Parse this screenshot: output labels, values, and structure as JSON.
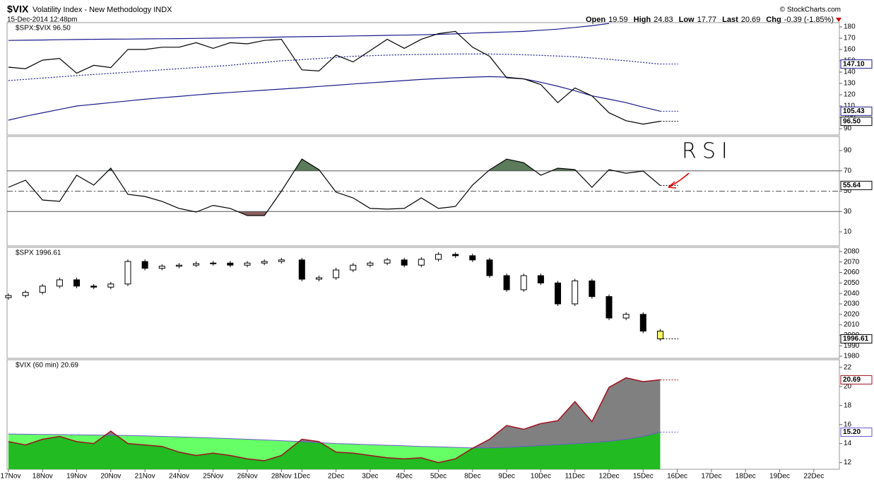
{
  "header": {
    "symbol": "$VIX",
    "description": "Volatility Index - New Methodology INDX",
    "timestamp": "15-Dec-2014 12:48pm",
    "copyright": "© StockCharts.com",
    "quote": [
      {
        "label": "Open",
        "value": "19.59"
      },
      {
        "label": "High",
        "value": "24.83"
      },
      {
        "label": "Low",
        "value": "17.77"
      },
      {
        "label": "Last",
        "value": "20.69"
      },
      {
        "label": "Chg",
        "value": "-0.39 (-1.85%)"
      }
    ]
  },
  "chart_data": [
    {
      "type": "line",
      "legend": "$SPX:$VIX 96.50",
      "x": [
        0,
        0.5,
        1,
        1.5,
        2,
        2.5,
        3,
        3.5,
        4,
        4.5,
        5,
        5.5,
        6,
        6.5,
        7,
        7.5,
        8,
        8.6,
        9.1,
        9.6,
        10.1,
        10.6,
        11.1,
        11.6,
        12.1,
        12.6,
        13.1,
        13.6,
        14.1,
        14.6,
        15.1,
        15.6,
        16.1,
        16.6,
        17.1,
        17.6,
        18.1,
        18.6,
        19.1
      ],
      "xlim": [
        -0.04,
        24.35
      ],
      "ylim": [
        84.4,
        183.75
      ],
      "yticks": [
        90,
        100,
        110,
        120,
        130,
        140,
        150,
        160,
        170,
        180
      ],
      "series": [
        {
          "color": "#1a1a8c",
          "style": "solid",
          "values": [
            168,
            168.2,
            168.4,
            168.6,
            168.8,
            169,
            169.1,
            169.2,
            169.4,
            169.5,
            169.6,
            169.8,
            170,
            170.2,
            170.5,
            170.7,
            171,
            171.3,
            171.5,
            171.7,
            172,
            172.2,
            172.5,
            172.7,
            173,
            173.4,
            173.8,
            174.5,
            175,
            175.5,
            176,
            177,
            178,
            179.5,
            181,
            183,
            null,
            null,
            null
          ]
        },
        {
          "color": "#1a1a8c",
          "style": "dotted",
          "last_label": "147.10",
          "values": [
            132.5,
            133.6,
            134.7,
            135.8,
            136.9,
            137.9,
            138.9,
            139.9,
            141,
            142,
            143,
            144,
            145,
            146,
            147.5,
            148.5,
            150,
            151,
            152,
            153,
            154,
            154.5,
            155,
            155.3,
            155.6,
            155.8,
            156,
            156,
            156,
            155.7,
            155.3,
            154.8,
            154.2,
            153.5,
            152.5,
            151.3,
            150,
            148.5,
            147.1
          ]
        },
        {
          "color": "#1a1a8c",
          "style": "solid",
          "last_label": "105.43",
          "values": [
            97.5,
            101,
            104,
            107,
            110,
            111.5,
            113,
            114.5,
            116,
            117.3,
            118.5,
            119.8,
            121,
            122,
            123,
            124,
            125,
            126.2,
            127.3,
            128.4,
            129.5,
            130.5,
            131.5,
            132.5,
            133.5,
            134.3,
            135,
            135.6,
            136,
            135.5,
            134,
            131,
            127.5,
            123.5,
            119,
            116,
            113,
            109,
            105.43
          ]
        },
        {
          "color": "#000000",
          "style": "solid",
          "last_label": "96.50",
          "values": [
            144.4,
            143,
            150.6,
            152,
            139,
            146,
            144,
            160,
            160,
            162,
            162,
            166,
            161,
            166,
            165,
            168,
            169,
            142,
            141,
            155,
            149,
            159,
            169,
            161,
            169,
            174,
            176,
            162,
            154,
            135,
            134,
            129,
            113,
            126,
            119,
            104,
            97,
            94,
            96.5
          ]
        }
      ]
    },
    {
      "type": "line",
      "annotation": "RSI",
      "x": [
        0,
        0.5,
        1,
        1.5,
        2,
        2.5,
        3,
        3.5,
        4,
        4.5,
        5,
        5.5,
        6,
        6.5,
        7,
        7.5,
        8,
        8.6,
        9.1,
        9.6,
        10.1,
        10.6,
        11.1,
        11.6,
        12.1,
        12.6,
        13.1,
        13.6,
        14.1,
        14.6,
        15.1,
        15.6,
        16.1,
        16.6,
        17.1,
        17.6,
        18.1,
        18.6,
        19.1
      ],
      "xlim": [
        -0.04,
        24.35
      ],
      "ylim": [
        -3.9,
        103.9
      ],
      "yticks": [
        10,
        30,
        50,
        70,
        90
      ],
      "bands": [
        30,
        70
      ],
      "midline": 50,
      "overbought_color": "#5b7b5b",
      "oversold_color": "#8b6060",
      "series": [
        {
          "color": "#000000",
          "style": "solid",
          "last_label": "55.64",
          "values": [
            53.8,
            60.8,
            41.3,
            40,
            65.7,
            56,
            72.6,
            46.9,
            44.8,
            40,
            33,
            29.5,
            36,
            33,
            26,
            26,
            50,
            81.6,
            71.2,
            49,
            43.4,
            33,
            32.3,
            33,
            43.4,
            33,
            35,
            56,
            71,
            81.6,
            78,
            65.7,
            72.6,
            71.2,
            53.8,
            71.2,
            67.7,
            69.8,
            55.64
          ]
        }
      ]
    },
    {
      "type": "candlestick",
      "legend": "$SPX 1996.61",
      "last_label": "1996.61",
      "up_color": "#ffffff",
      "down_color": "#000000",
      "last_color": "#ffff66",
      "x": [
        0,
        0.5,
        1,
        1.5,
        2,
        2.5,
        3,
        3.5,
        4,
        4.5,
        5,
        5.5,
        6,
        6.5,
        7,
        7.5,
        8,
        8.6,
        9.1,
        9.6,
        10.1,
        10.6,
        11.1,
        11.6,
        12.1,
        12.6,
        13.1,
        13.6,
        14.1,
        14.6,
        15.1,
        15.6,
        16.1,
        16.6,
        17.1,
        17.6,
        18.1,
        18.6,
        19.1
      ],
      "xlim": [
        -0.04,
        24.35
      ],
      "ylim": [
        1978,
        2084
      ],
      "yticks": [
        1980,
        1990,
        2000,
        2010,
        2020,
        2030,
        2040,
        2050,
        2060,
        2070,
        2080
      ],
      "open": [
        2036,
        2038,
        2041,
        2047,
        2053,
        2047,
        2046,
        2049,
        2070.5,
        2064,
        2066,
        2067,
        2068.5,
        2069,
        2067,
        2069,
        2070.5,
        2072,
        2053.6,
        2055,
        2062.4,
        2067,
        2069,
        2072,
        2067,
        2072.6,
        2077.3,
        2076,
        2072,
        2057,
        2043.5,
        2057,
        2050,
        2030,
        2052,
        2037,
        2016.5,
        2020,
        2004
      ],
      "high": [
        2040,
        2043,
        2049,
        2055,
        2055,
        2049,
        2051,
        2072.5,
        2072.5,
        2068,
        2069,
        2070.5,
        2071,
        2071,
        2071,
        2072.5,
        2074,
        2074,
        2057,
        2064.4,
        2069,
        2071,
        2074,
        2074,
        2074.6,
        2079.3,
        2079.3,
        2078,
        2074,
        2059,
        2059,
        2059,
        2052,
        2054,
        2054,
        2039,
        2022,
        2022,
        2006
      ],
      "low": [
        2034,
        2036,
        2039,
        2045,
        2045,
        2044,
        2044,
        2047,
        2062,
        2062,
        2064,
        2065,
        2066.5,
        2065,
        2065,
        2067,
        2068.5,
        2051.6,
        2051.6,
        2053,
        2060.4,
        2065,
        2067,
        2065,
        2065,
        2070.6,
        2074,
        2070,
        2055,
        2041.5,
        2041.5,
        2048,
        2028,
        2028,
        2035,
        2014.5,
        2014.5,
        2002,
        1994.61
      ],
      "close": [
        2038,
        2041,
        2047,
        2053,
        2047,
        2046,
        2049,
        2070.5,
        2064,
        2066,
        2067,
        2068.5,
        2069,
        2067,
        2069,
        2070.5,
        2072,
        2053.6,
        2055,
        2062.4,
        2067,
        2069,
        2072,
        2067,
        2072.6,
        2077.3,
        2076,
        2072,
        2057,
        2043.5,
        2057,
        2050,
        2030,
        2052,
        2037,
        2016.5,
        2020,
        2004,
        1996.61
      ]
    },
    {
      "type": "area",
      "legend": "$VIX (60 min) 20.69",
      "x": [
        0,
        0.5,
        1,
        1.5,
        2,
        2.5,
        3,
        3.5,
        4,
        4.5,
        5,
        5.5,
        6,
        6.5,
        7,
        7.5,
        8,
        8.6,
        9.1,
        9.6,
        10.1,
        10.6,
        11.1,
        11.6,
        12.1,
        12.6,
        13.1,
        13.6,
        14.1,
        14.6,
        15.1,
        15.6,
        16.1,
        16.6,
        17.1,
        17.6,
        18.1,
        18.6,
        19.1
      ],
      "xlim": [
        -0.04,
        24.35
      ],
      "ylim": [
        11.3,
        22.8
      ],
      "yticks": [
        12,
        14,
        16,
        18,
        20,
        22
      ],
      "xticks": [
        {
          "value": 0,
          "label": "17Nov"
        },
        {
          "value": 1,
          "label": "18Nov"
        },
        {
          "value": 2,
          "label": "19Nov"
        },
        {
          "value": 3,
          "label": "20Nov"
        },
        {
          "value": 4,
          "label": "21Nov"
        },
        {
          "value": 5,
          "label": "24Nov"
        },
        {
          "value": 6,
          "label": "25Nov"
        },
        {
          "value": 7,
          "label": "26Nov"
        },
        {
          "value": 8,
          "label": "28Nov"
        },
        {
          "value": 8.6,
          "label": "1Dec"
        },
        {
          "value": 9.6,
          "label": "2Dec"
        },
        {
          "value": 10.6,
          "label": "3Dec"
        },
        {
          "value": 11.6,
          "label": "4Dec"
        },
        {
          "value": 12.6,
          "label": "5Dec"
        },
        {
          "value": 13.6,
          "label": "8Dec"
        },
        {
          "value": 14.6,
          "label": "9Dec"
        },
        {
          "value": 15.6,
          "label": "10Dec"
        },
        {
          "value": 16.6,
          "label": "11Dec"
        },
        {
          "value": 17.6,
          "label": "12Dec"
        },
        {
          "value": 18.6,
          "label": "15Dec"
        },
        {
          "value": 19.6,
          "label": "16Dec"
        },
        {
          "value": 20.6,
          "label": "17Dec"
        },
        {
          "value": 21.6,
          "label": "18Dec"
        },
        {
          "value": 22.6,
          "label": "19Dec"
        },
        {
          "value": 23.6,
          "label": "22Dec"
        }
      ],
      "above_color": "#808080",
      "below_color": "#22bb22",
      "ma_color": "#66ff66",
      "series": [
        {
          "color": "#6a5acd",
          "role": "average",
          "last_label": "15.20",
          "values": [
            15,
            14.98,
            14.96,
            14.94,
            14.92,
            14.9,
            14.87,
            14.84,
            14.8,
            14.75,
            14.7,
            14.64,
            14.58,
            14.52,
            14.45,
            14.38,
            14.3,
            14.2,
            14.1,
            14,
            13.95,
            13.88,
            13.82,
            13.76,
            13.7,
            13.65,
            13.6,
            13.55,
            13.55,
            13.6,
            13.7,
            13.8,
            13.9,
            14,
            14.1,
            14.25,
            14.45,
            14.75,
            15.2
          ]
        },
        {
          "color": "#a01020",
          "role": "price",
          "last_label": "20.69",
          "values": [
            14.2,
            13.85,
            14.45,
            14.75,
            14.2,
            14,
            15.3,
            14,
            13.85,
            13.7,
            13.1,
            12.75,
            13,
            12.75,
            12.4,
            12.2,
            12.75,
            14.45,
            14.2,
            13.1,
            13,
            12.75,
            12.5,
            12.4,
            12.5,
            12,
            12.4,
            13.5,
            14.45,
            15.9,
            15.5,
            16.1,
            16.4,
            18.4,
            16.3,
            19.9,
            20.9,
            20.5,
            20.69
          ]
        }
      ]
    }
  ]
}
